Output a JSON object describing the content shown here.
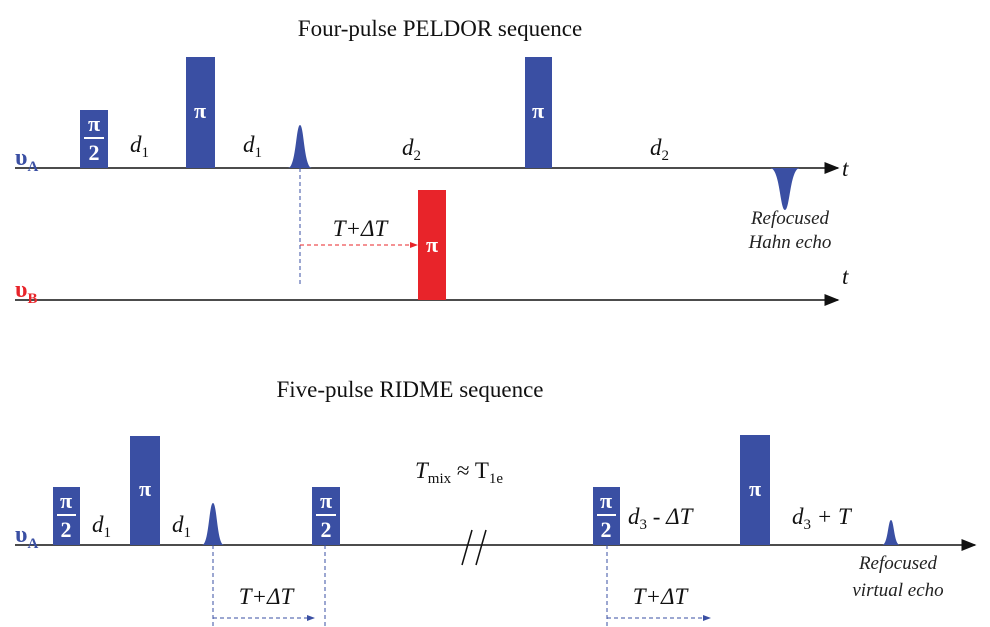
{
  "peldor": {
    "title": "Four-pulse PELDOR sequence",
    "channels": [
      {
        "symbol": "υ",
        "sub": "A"
      },
      {
        "symbol": "υ",
        "sub": "B"
      }
    ],
    "pulses": [
      {
        "num": "π",
        "den": "2"
      },
      {
        "label": "π"
      },
      {
        "label": "π"
      },
      {
        "label": "π"
      }
    ],
    "delays": [
      {
        "main": "d",
        "sub": "1"
      },
      {
        "main": "d",
        "sub": "1"
      },
      {
        "main": "d",
        "sub": "2"
      },
      {
        "main": "d",
        "sub": "2"
      }
    ],
    "time_axis": [
      "t",
      "t"
    ],
    "offset": "T+ΔT",
    "echo": [
      "Refocused",
      "Hahn echo"
    ]
  },
  "ridme": {
    "title": "Five-pulse RIDME sequence",
    "channel": {
      "symbol": "υ",
      "sub": "A"
    },
    "pulses": [
      {
        "num": "π",
        "den": "2"
      },
      {
        "label": "π"
      },
      {
        "num": "π",
        "den": "2"
      },
      {
        "num": "π",
        "den": "2"
      },
      {
        "label": "π"
      }
    ],
    "delays": [
      {
        "main": "d",
        "sub": "1"
      },
      {
        "main": "d",
        "sub": "1"
      },
      {
        "main": "d",
        "sub": "3",
        "rest": " - ΔT"
      },
      {
        "main": "d",
        "sub": "3",
        "rest": " + T"
      }
    ],
    "mixing": {
      "t": "T",
      "t_sub": "mix",
      "approx": " ≈ T",
      "approx_sub": "1e"
    },
    "offsets": [
      "T+ΔT",
      "T+ΔT"
    ],
    "echo": [
      "Refocused",
      "virtual echo"
    ]
  }
}
